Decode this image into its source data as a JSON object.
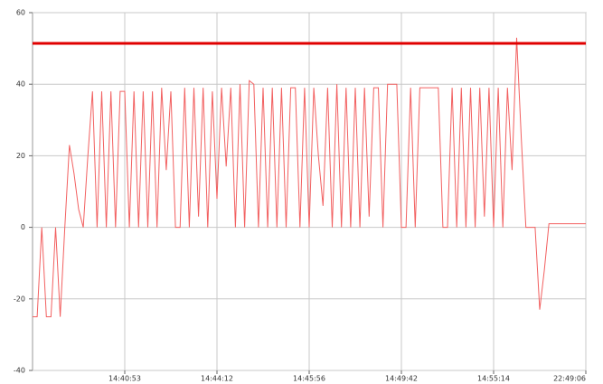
{
  "chart_data": {
    "type": "line",
    "categories": [
      null,
      null,
      null,
      null,
      null,
      null,
      null,
      null,
      null,
      null,
      null,
      null,
      null,
      null,
      null,
      null,
      null,
      null,
      null,
      null,
      "14:40:53",
      null,
      null,
      null,
      null,
      null,
      null,
      null,
      null,
      null,
      null,
      null,
      null,
      null,
      null,
      null,
      null,
      null,
      null,
      null,
      "14:44:12",
      null,
      null,
      null,
      null,
      null,
      null,
      null,
      null,
      null,
      null,
      null,
      null,
      null,
      null,
      null,
      null,
      null,
      null,
      null,
      "14:45:56",
      null,
      null,
      null,
      null,
      null,
      null,
      null,
      null,
      null,
      null,
      null,
      null,
      null,
      null,
      null,
      null,
      null,
      null,
      null,
      "14:49:42",
      null,
      null,
      null,
      null,
      null,
      null,
      null,
      null,
      null,
      null,
      null,
      null,
      null,
      null,
      null,
      null,
      null,
      null,
      null,
      "14:55:14",
      null,
      null,
      null,
      null,
      null,
      null,
      null,
      null,
      null,
      null,
      null,
      null,
      null,
      null,
      null,
      null,
      null,
      null,
      null,
      "22:49:06"
    ],
    "series": [
      {
        "color": "#f26060",
        "values": [
          -25,
          -25,
          0,
          -25,
          -25,
          0,
          -25,
          0,
          23,
          15,
          5,
          0,
          20,
          38,
          0,
          38,
          0,
          38,
          0,
          38,
          38,
          0,
          38,
          0,
          38,
          0,
          38,
          0,
          39,
          16,
          38,
          0,
          0,
          39,
          0,
          39,
          3,
          39,
          0,
          38,
          8,
          39,
          17,
          39,
          0,
          40,
          0,
          41,
          40,
          0,
          39,
          0,
          39,
          0,
          39,
          0,
          39,
          39,
          0,
          39,
          0,
          39,
          20,
          6,
          39,
          0,
          40,
          0,
          39,
          0,
          39,
          0,
          39,
          3,
          39,
          39,
          0,
          40,
          40,
          40,
          0,
          0,
          39,
          0,
          39,
          39,
          39,
          39,
          39,
          0,
          0,
          39,
          0,
          39,
          0,
          39,
          0,
          39,
          3,
          39,
          0,
          39,
          0,
          39,
          16,
          53,
          25,
          0,
          0,
          0,
          -23,
          -12,
          1,
          1,
          1,
          1,
          1,
          1,
          1,
          1,
          1
        ]
      }
    ],
    "threshold": {
      "value": 51.4,
      "color": "#e00000"
    },
    "ylim": [
      -40,
      60
    ],
    "yticks": [
      -40,
      -20,
      0,
      20,
      40,
      60
    ],
    "grid": true
  }
}
